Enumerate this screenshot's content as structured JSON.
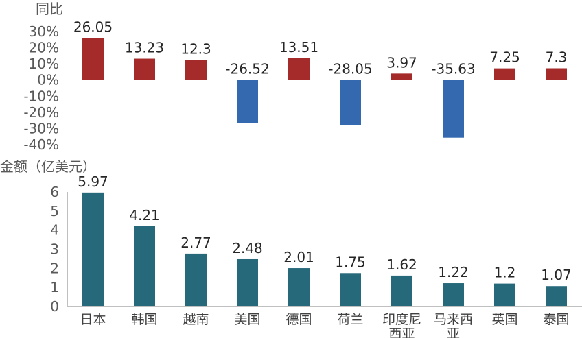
{
  "chart_data": [
    {
      "type": "bar",
      "ylabel": "同比",
      "ylim": [
        -40,
        30
      ],
      "yticks": [
        "30%",
        "20%",
        "10%",
        "0%",
        "-10%",
        "-20%",
        "-30%",
        "-40%"
      ],
      "ytick_values": [
        30,
        20,
        10,
        0,
        -10,
        -20,
        -30,
        -40
      ],
      "categories": [
        "日本",
        "韩国",
        "越南",
        "美国",
        "德国",
        "荷兰",
        "印度尼西亚",
        "马来西亚",
        "英国",
        "泰国"
      ],
      "values": [
        26.05,
        13.23,
        12.3,
        -26.52,
        13.51,
        -28.05,
        3.97,
        -35.63,
        7.25,
        7.3
      ],
      "value_labels": [
        "26.05",
        "13.23",
        "12.3",
        "-26.52",
        "13.51",
        "-28.05",
        "3.97",
        "-35.63",
        "7.25",
        "7.3"
      ],
      "colors": {
        "positive": "#A52A2A",
        "negative": "#3469B0"
      },
      "grid": false
    },
    {
      "type": "bar",
      "ylabel": "金额（亿美元）",
      "ylim": [
        0,
        6
      ],
      "yticks": [
        "0",
        "1",
        "2",
        "3",
        "4",
        "5",
        "6"
      ],
      "ytick_values": [
        0,
        1,
        2,
        3,
        4,
        5,
        6
      ],
      "categories": [
        "日本",
        "韩国",
        "越南",
        "美国",
        "德国",
        "荷兰",
        "印度尼西亚",
        "马来西亚",
        "英国",
        "泰国"
      ],
      "category_lines": [
        [
          "日本"
        ],
        [
          "韩国"
        ],
        [
          "越南"
        ],
        [
          "美国"
        ],
        [
          "德国"
        ],
        [
          "荷兰"
        ],
        [
          "印度尼",
          "西亚"
        ],
        [
          "马来西",
          "亚"
        ],
        [
          "英国"
        ],
        [
          "泰国"
        ]
      ],
      "values": [
        5.97,
        4.21,
        2.77,
        2.48,
        2.01,
        1.75,
        1.62,
        1.22,
        1.2,
        1.07
      ],
      "value_labels": [
        "5.97",
        "4.21",
        "2.77",
        "2.48",
        "2.01",
        "1.75",
        "1.62",
        "1.22",
        "1.2",
        "1.07"
      ],
      "colors": {
        "bar": "#25697A"
      },
      "grid": false
    }
  ]
}
